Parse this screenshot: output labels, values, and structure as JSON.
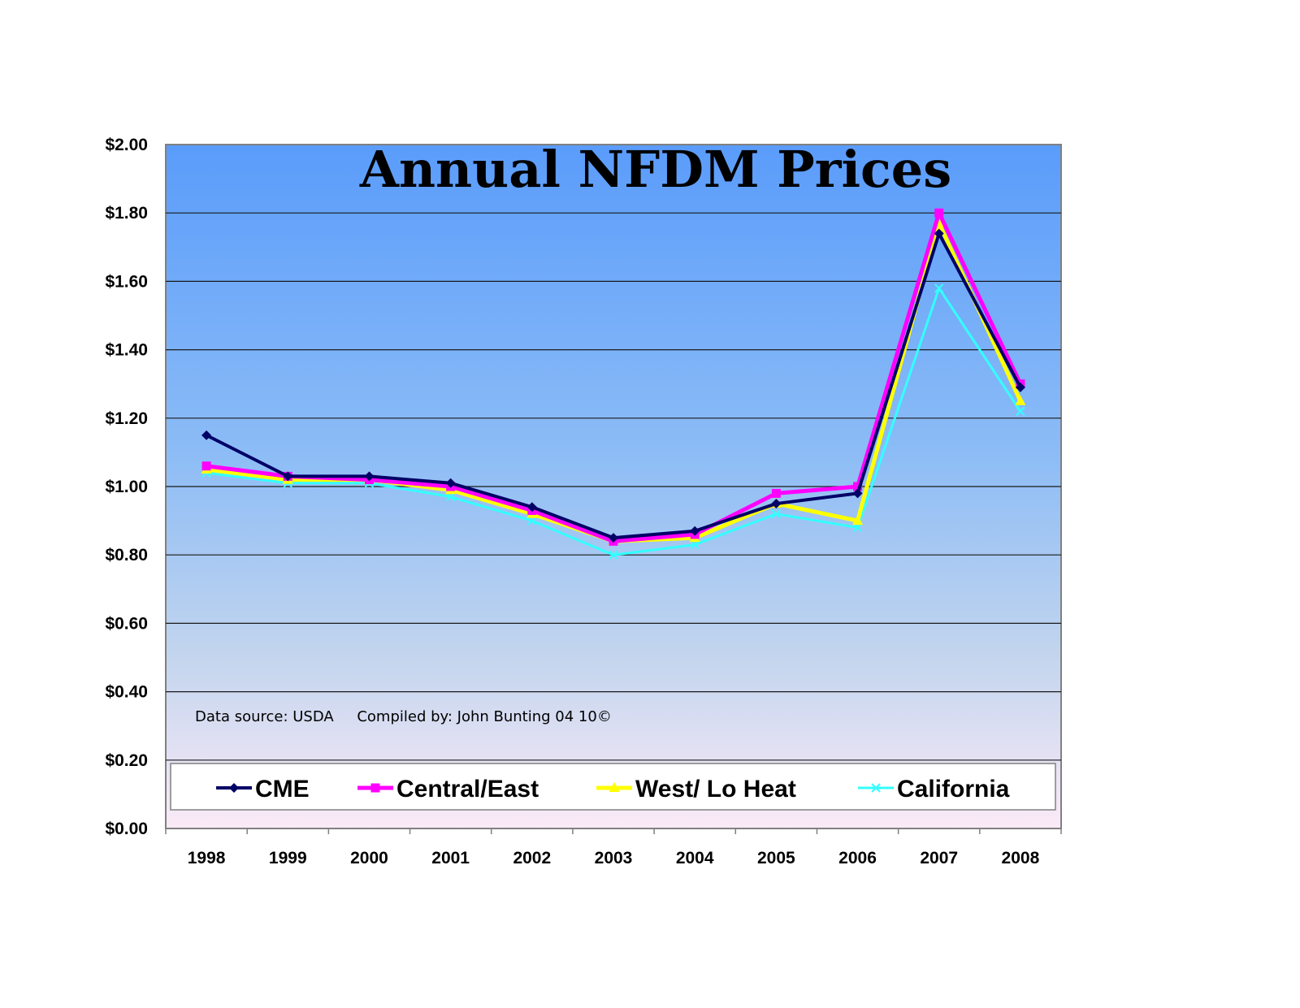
{
  "chart_data": {
    "type": "line",
    "title": "Annual NFDM Prices",
    "categories": [
      "1998",
      "1999",
      "2000",
      "2001",
      "2002",
      "2003",
      "2004",
      "2005",
      "2006",
      "2007",
      "2008"
    ],
    "ylim": [
      0,
      2
    ],
    "yticks": [
      "$0.00",
      "$0.20",
      "$0.40",
      "$0.60",
      "$0.80",
      "$1.00",
      "$1.20",
      "$1.40",
      "$1.60",
      "$1.80",
      "$2.00"
    ],
    "grid": true,
    "legend_position": "bottom",
    "annotation": "Data source: USDA     Compiled by: John Bunting 04 10©",
    "series": [
      {
        "name": "CME",
        "color": "#000066",
        "marker": "diamond",
        "values": [
          1.15,
          1.03,
          1.03,
          1.01,
          0.94,
          0.85,
          0.87,
          0.95,
          0.98,
          1.74,
          1.29
        ]
      },
      {
        "name": "Central/East",
        "color": "#FF00FF",
        "marker": "square",
        "values": [
          1.06,
          1.03,
          1.02,
          1.0,
          0.93,
          0.84,
          0.86,
          0.98,
          1.0,
          1.8,
          1.3
        ]
      },
      {
        "name": "West/ Lo Heat",
        "color": "#FFFF00",
        "marker": "triangle",
        "values": [
          1.05,
          1.02,
          1.02,
          0.99,
          0.92,
          0.84,
          0.85,
          0.95,
          0.9,
          1.77,
          1.25
        ]
      },
      {
        "name": "California",
        "color": "#33FFFF",
        "marker": "x",
        "values": [
          1.04,
          1.01,
          1.01,
          0.97,
          0.9,
          0.8,
          0.83,
          0.92,
          0.88,
          1.58,
          1.22
        ]
      }
    ]
  }
}
